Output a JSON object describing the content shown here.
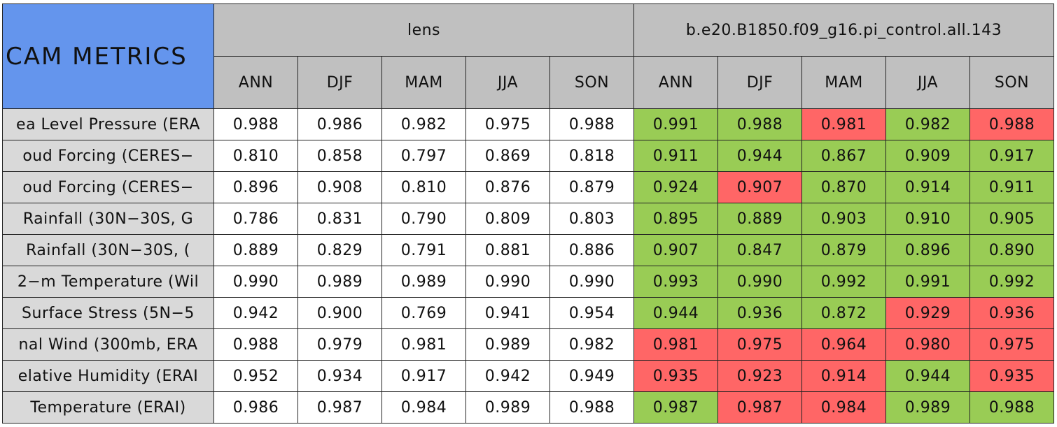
{
  "header": {
    "title": "CAM METRICS",
    "groups": [
      "lens",
      "b.e20.B1850.f09_g16.pi_control.all.143"
    ],
    "seasons": [
      [
        "ANN",
        "DJF",
        "MAM",
        "JJA",
        "SON"
      ],
      [
        "ANN",
        "DJF",
        "MAM",
        "JJA",
        "SON"
      ]
    ]
  },
  "table": {
    "rows": [
      {
        "label": "ea Level Pressure (ERA",
        "values": [
          "0.988",
          "0.986",
          "0.982",
          "0.975",
          "0.988",
          "0.991",
          "0.988",
          "0.981",
          "0.982",
          "0.988"
        ],
        "colors": [
          "#ffffff",
          "#ffffff",
          "#ffffff",
          "#ffffff",
          "#ffffff",
          "#99cc55",
          "#99cc55",
          "#ff6666",
          "#99cc55",
          "#ff6666"
        ]
      },
      {
        "label": "oud Forcing (CERES−",
        "values": [
          "0.810",
          "0.858",
          "0.797",
          "0.869",
          "0.818",
          "0.911",
          "0.944",
          "0.867",
          "0.909",
          "0.917"
        ],
        "colors": [
          "#ffffff",
          "#ffffff",
          "#ffffff",
          "#ffffff",
          "#ffffff",
          "#99cc55",
          "#99cc55",
          "#99cc55",
          "#99cc55",
          "#99cc55"
        ]
      },
      {
        "label": "oud Forcing (CERES−",
        "values": [
          "0.896",
          "0.908",
          "0.810",
          "0.876",
          "0.879",
          "0.924",
          "0.907",
          "0.870",
          "0.914",
          "0.911"
        ],
        "colors": [
          "#ffffff",
          "#ffffff",
          "#ffffff",
          "#ffffff",
          "#ffffff",
          "#99cc55",
          "#ff6666",
          "#99cc55",
          "#99cc55",
          "#99cc55"
        ]
      },
      {
        "label": "Rainfall (30N−30S, G",
        "values": [
          "0.786",
          "0.831",
          "0.790",
          "0.809",
          "0.803",
          "0.895",
          "0.889",
          "0.903",
          "0.910",
          "0.905"
        ],
        "colors": [
          "#ffffff",
          "#ffffff",
          "#ffffff",
          "#ffffff",
          "#ffffff",
          "#99cc55",
          "#99cc55",
          "#99cc55",
          "#99cc55",
          "#99cc55"
        ]
      },
      {
        "label": "Rainfall (30N−30S, (",
        "values": [
          "0.889",
          "0.829",
          "0.791",
          "0.881",
          "0.886",
          "0.907",
          "0.847",
          "0.879",
          "0.896",
          "0.890"
        ],
        "colors": [
          "#ffffff",
          "#ffffff",
          "#ffffff",
          "#ffffff",
          "#ffffff",
          "#99cc55",
          "#99cc55",
          "#99cc55",
          "#99cc55",
          "#99cc55"
        ]
      },
      {
        "label": "2−m Temperature (Wil",
        "values": [
          "0.990",
          "0.989",
          "0.989",
          "0.990",
          "0.990",
          "0.993",
          "0.990",
          "0.992",
          "0.991",
          "0.992"
        ],
        "colors": [
          "#ffffff",
          "#ffffff",
          "#ffffff",
          "#ffffff",
          "#ffffff",
          "#99cc55",
          "#99cc55",
          "#99cc55",
          "#99cc55",
          "#99cc55"
        ]
      },
      {
        "label": "Surface Stress (5N−5",
        "values": [
          "0.942",
          "0.900",
          "0.769",
          "0.941",
          "0.954",
          "0.944",
          "0.936",
          "0.872",
          "0.929",
          "0.936"
        ],
        "colors": [
          "#ffffff",
          "#ffffff",
          "#ffffff",
          "#ffffff",
          "#ffffff",
          "#99cc55",
          "#99cc55",
          "#99cc55",
          "#ff6666",
          "#ff6666"
        ]
      },
      {
        "label": "nal Wind (300mb, ERA",
        "values": [
          "0.988",
          "0.979",
          "0.981",
          "0.989",
          "0.982",
          "0.981",
          "0.975",
          "0.964",
          "0.980",
          "0.975"
        ],
        "colors": [
          "#ffffff",
          "#ffffff",
          "#ffffff",
          "#ffffff",
          "#ffffff",
          "#ff6666",
          "#ff6666",
          "#ff6666",
          "#ff6666",
          "#ff6666"
        ]
      },
      {
        "label": "elative Humidity (ERAI",
        "values": [
          "0.952",
          "0.934",
          "0.917",
          "0.942",
          "0.949",
          "0.935",
          "0.923",
          "0.914",
          "0.944",
          "0.935"
        ],
        "colors": [
          "#ffffff",
          "#ffffff",
          "#ffffff",
          "#ffffff",
          "#ffffff",
          "#ff6666",
          "#ff6666",
          "#ff6666",
          "#99cc55",
          "#ff6666"
        ]
      },
      {
        "label": "Temperature (ERAI)",
        "values": [
          "0.986",
          "0.987",
          "0.984",
          "0.989",
          "0.988",
          "0.987",
          "0.987",
          "0.984",
          "0.989",
          "0.988"
        ],
        "colors": [
          "#ffffff",
          "#ffffff",
          "#ffffff",
          "#ffffff",
          "#ffffff",
          "#99cc55",
          "#ff6666",
          "#ff6666",
          "#99cc55",
          "#99cc55"
        ]
      }
    ]
  }
}
